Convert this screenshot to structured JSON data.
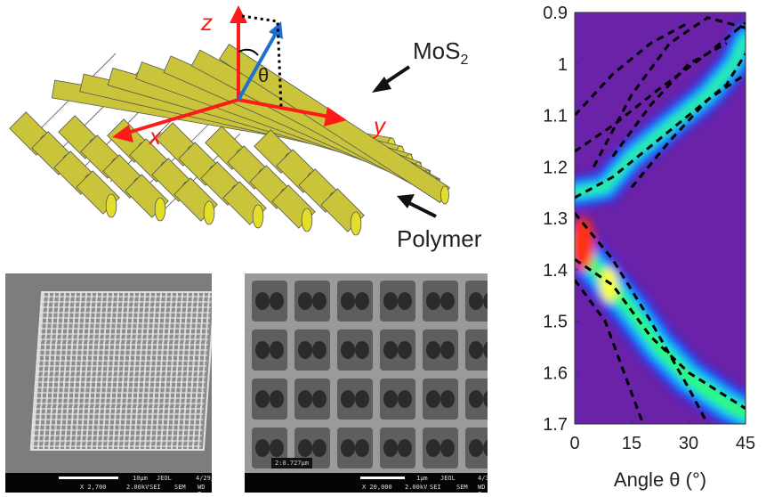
{
  "diagram": {
    "axis_z": "z",
    "axis_x": "x",
    "axis_y": "y",
    "angle": "θ",
    "label_top": "MoS",
    "label_top_sub": "2",
    "label_bottom": "Polymer",
    "colors": {
      "cylinder": "#c9c43a",
      "cylinder_end": "#e3de2a",
      "axes": "#ff1a1a",
      "vector": "#1f6fd0"
    }
  },
  "sem_left": {
    "scale": "10μm",
    "brand": "JEOL",
    "date": "4/29/2016",
    "mag": "X 2,700",
    "kv": "2.00kV",
    "mode": "SEI",
    "type": "SEM",
    "wd": "WD 7mm"
  },
  "sem_right": {
    "measure": "2:0.727μm",
    "scale": "1μm",
    "brand": "JEOL",
    "date": "4/3/2017",
    "mag": "X 20,000",
    "kv": "2.00kV",
    "mode": "SEI",
    "type": "SEM",
    "wd": "WD 8mm"
  },
  "chart_data": {
    "type": "heatmap",
    "xlabel": "Angle θ (°)",
    "ylabel": "",
    "xlim": [
      0,
      45
    ],
    "ylim": [
      0.9,
      1.7
    ],
    "y_inverted": true,
    "xticks": [
      0,
      15,
      30,
      45
    ],
    "xtick_labels": [
      "0",
      "15",
      "30",
      "45"
    ],
    "yticks": [
      0.9,
      1.0,
      1.1,
      1.2,
      1.3,
      1.4,
      1.5,
      1.6,
      1.7
    ],
    "ytick_labels": [
      "0.9",
      "1",
      "1.1",
      "1.2",
      "1.3",
      "1.4",
      "1.5",
      "1.6",
      "1.7"
    ],
    "colormap": [
      "#5a1a8a",
      "#7a2fc0",
      "#1e3cff",
      "#10c0ff",
      "#30ff60",
      "#ffff20",
      "#ff3010"
    ],
    "bright_bands": [
      {
        "points": [
          [
            0,
            1.35
          ],
          [
            8,
            1.42
          ],
          [
            15,
            1.48
          ],
          [
            22,
            1.55
          ],
          [
            30,
            1.61
          ],
          [
            40,
            1.66
          ],
          [
            45,
            1.68
          ]
        ],
        "level": "high"
      },
      {
        "points": [
          [
            0,
            1.25
          ],
          [
            8,
            1.24
          ],
          [
            15,
            1.18
          ],
          [
            25,
            1.12
          ],
          [
            35,
            1.06
          ],
          [
            42,
            1.0
          ],
          [
            45,
            0.95
          ]
        ],
        "level": "mid"
      }
    ],
    "dashed_curves": [
      [
        [
          0,
          1.29
        ],
        [
          10,
          1.38
        ],
        [
          20,
          1.5
        ],
        [
          30,
          1.63
        ],
        [
          35,
          1.7
        ]
      ],
      [
        [
          0,
          1.38
        ],
        [
          10,
          1.43
        ],
        [
          20,
          1.53
        ],
        [
          30,
          1.6
        ],
        [
          45,
          1.67
        ]
      ],
      [
        [
          0,
          1.42
        ],
        [
          8,
          1.5
        ],
        [
          14,
          1.62
        ],
        [
          18,
          1.7
        ]
      ],
      [
        [
          0,
          1.26
        ],
        [
          10,
          1.22
        ],
        [
          20,
          1.16
        ],
        [
          30,
          1.1
        ],
        [
          40,
          1.04
        ],
        [
          45,
          0.98
        ]
      ],
      [
        [
          0,
          1.17
        ],
        [
          10,
          1.12
        ],
        [
          22,
          1.05
        ],
        [
          35,
          0.98
        ],
        [
          45,
          0.92
        ]
      ],
      [
        [
          0,
          1.1
        ],
        [
          10,
          1.02
        ],
        [
          20,
          0.96
        ],
        [
          30,
          0.92
        ]
      ],
      [
        [
          5,
          1.2
        ],
        [
          15,
          1.06
        ],
        [
          25,
          0.96
        ],
        [
          35,
          0.91
        ],
        [
          45,
          0.93
        ]
      ],
      [
        [
          10,
          1.18
        ],
        [
          20,
          1.08
        ],
        [
          30,
          1.0
        ],
        [
          40,
          0.96
        ]
      ],
      [
        [
          15,
          1.24
        ],
        [
          25,
          1.15
        ],
        [
          35,
          1.07
        ],
        [
          45,
          1.02
        ]
      ]
    ]
  }
}
